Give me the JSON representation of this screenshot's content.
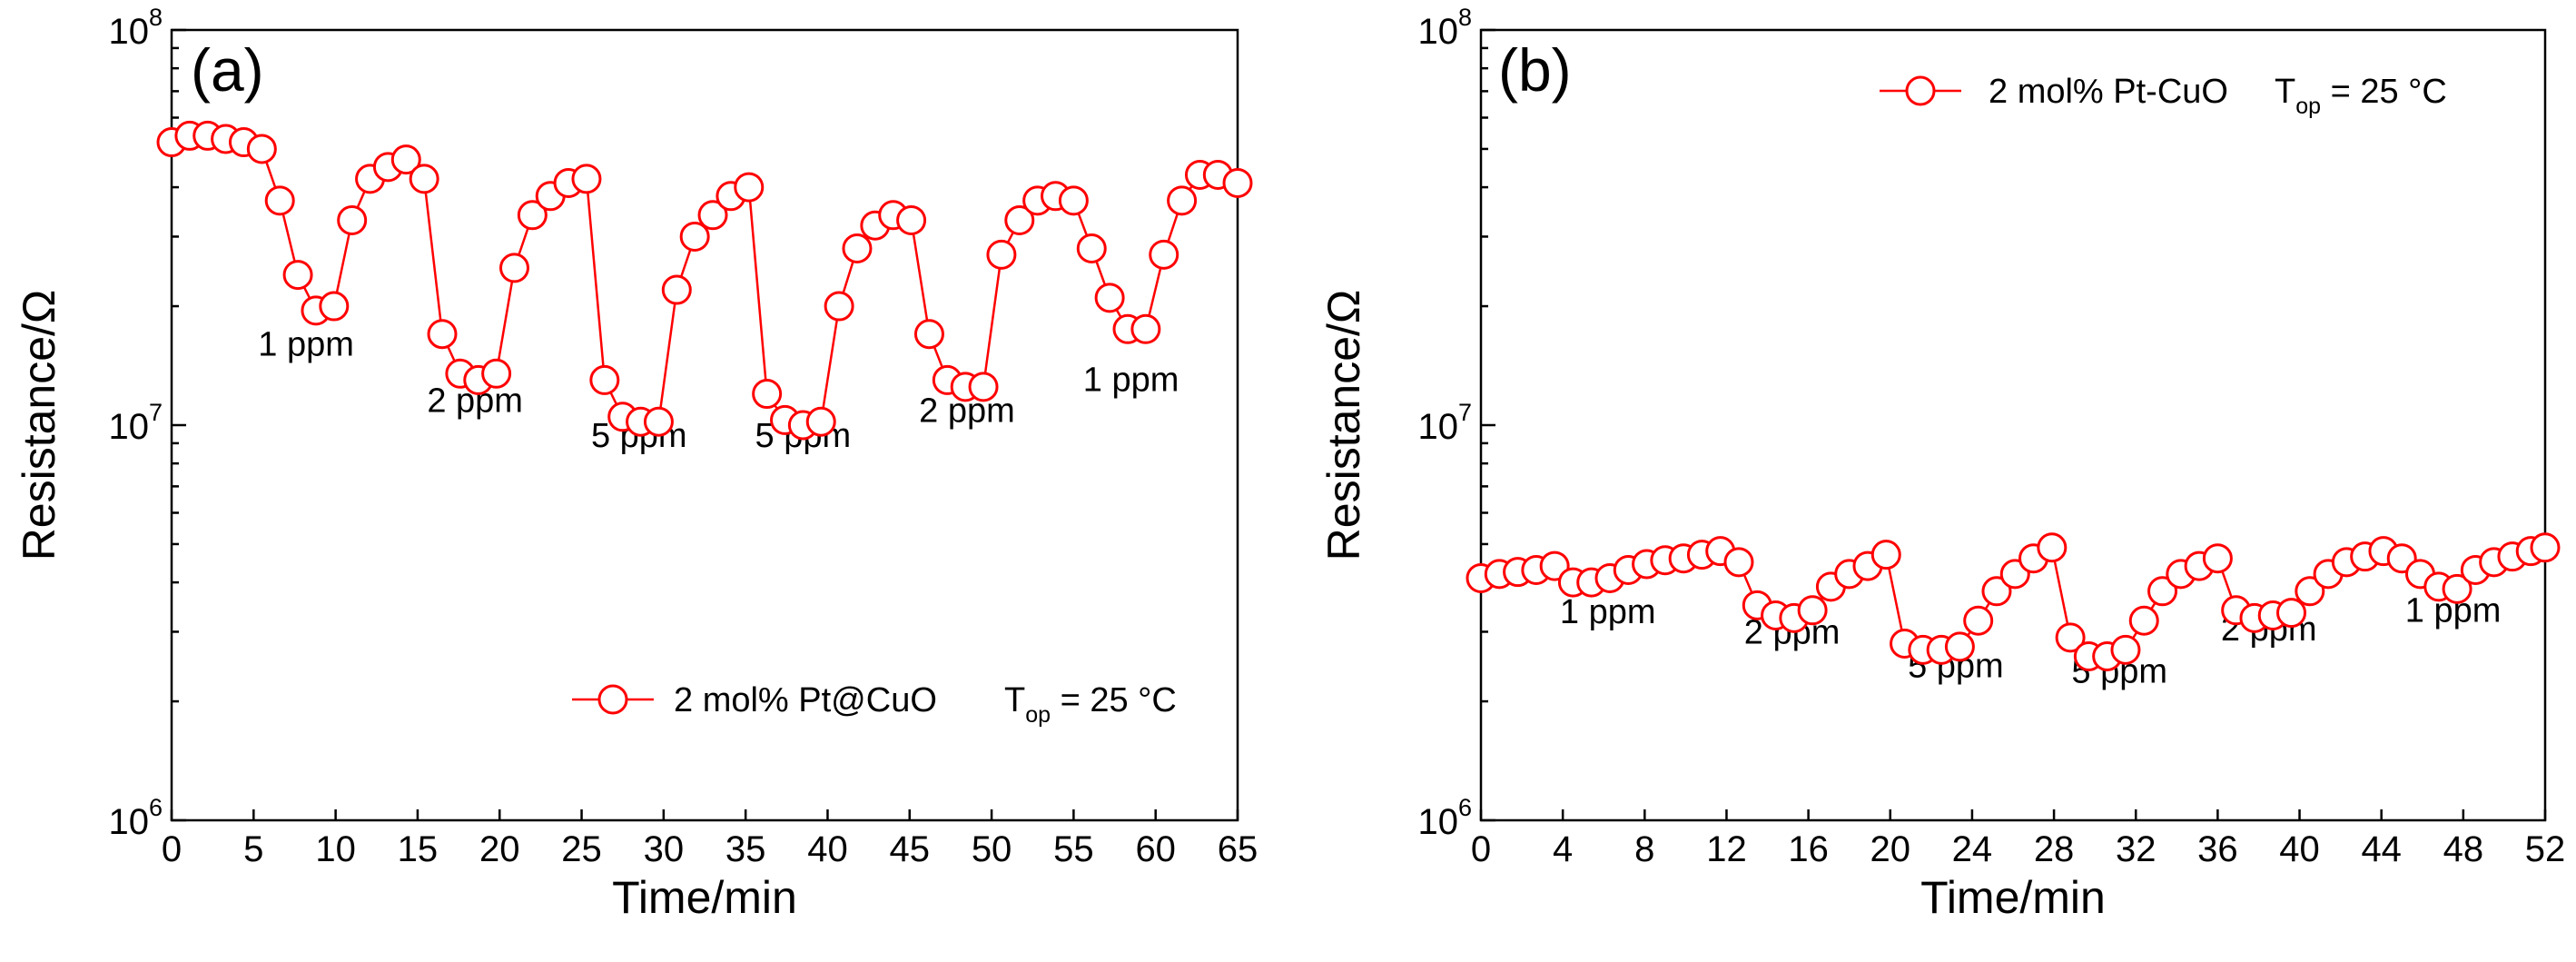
{
  "chart_data": [
    {
      "panel_label": "(a)",
      "type": "scatter",
      "title": "",
      "xlabel": "Time/min",
      "ylabel": "Resistance/Ω",
      "xlim": [
        0,
        65
      ],
      "ylim": [
        1000000,
        100000000
      ],
      "yscale": "log",
      "xticks": [
        0,
        5,
        10,
        15,
        20,
        25,
        30,
        35,
        40,
        45,
        50,
        55,
        60,
        65
      ],
      "yticks": [
        {
          "value": 1000000,
          "base": "10",
          "exp": "6"
        },
        {
          "value": 10000000,
          "base": "10",
          "exp": "7"
        },
        {
          "value": 100000000,
          "base": "10",
          "exp": "8"
        }
      ],
      "color": "#ff0000",
      "series": [
        {
          "name": "2 mol% Pt@CuO",
          "marker": "open-circle",
          "x": [
            0,
            1.1,
            2.2,
            3.3,
            4.4,
            5.5,
            6.6,
            7.7,
            8.8,
            9.9,
            11,
            12.1,
            13.2,
            14.3,
            15.4,
            16.5,
            17.6,
            18.7,
            19.8,
            20.9,
            22,
            23.1,
            24.2,
            25.3,
            26.4,
            27.5,
            28.6,
            29.7,
            30.8,
            31.9,
            33,
            34.1,
            35.2,
            36.3,
            37.4,
            38.5,
            39.6,
            40.7,
            41.8,
            42.9,
            44,
            45.1,
            46.2,
            47.3,
            48.4,
            49.5,
            50.6,
            51.7,
            52.8,
            53.9,
            55,
            56.1,
            57.2,
            58.3,
            59.4,
            60.5,
            61.6,
            62.7,
            63.8,
            65
          ],
          "y": [
            52000000,
            54000000,
            54000000,
            53000000,
            52000000,
            50000000,
            37000000,
            24000000,
            19500000,
            20000000,
            33000000,
            42000000,
            45000000,
            47000000,
            42000000,
            17000000,
            13500000,
            13000000,
            13500000,
            25000000,
            34000000,
            38000000,
            41000000,
            42000000,
            13000000,
            10500000,
            10200000,
            10200000,
            22000000,
            30000000,
            34000000,
            38000000,
            40000000,
            12000000,
            10300000,
            10000000,
            10200000,
            20000000,
            28000000,
            32000000,
            34000000,
            33000000,
            17000000,
            13000000,
            12500000,
            12500000,
            27000000,
            33000000,
            37000000,
            38000000,
            37000000,
            28000000,
            21000000,
            17500000,
            17500000,
            27000000,
            37000000,
            43000000,
            43000000,
            41000000
          ]
        }
      ],
      "annotations": [
        {
          "text": "1 ppm",
          "x": 8.2,
          "y": 15000000
        },
        {
          "text": "2 ppm",
          "x": 18.5,
          "y": 10800000
        },
        {
          "text": "5 ppm",
          "x": 28.5,
          "y": 8800000
        },
        {
          "text": "5 ppm",
          "x": 38.5,
          "y": 8800000
        },
        {
          "text": "2 ppm",
          "x": 48.5,
          "y": 10200000
        },
        {
          "text": "1 ppm",
          "x": 58.5,
          "y": 12200000
        }
      ],
      "legend": {
        "location": "lower-right",
        "label": "2 mol% Pt@CuO",
        "condition_main": "T",
        "condition_sub": "op",
        "condition_rest": " = 25 °C"
      }
    },
    {
      "panel_label": "(b)",
      "type": "scatter",
      "title": "",
      "xlabel": "Time/min",
      "ylabel": "Resistance/Ω",
      "xlim": [
        0,
        52
      ],
      "ylim": [
        1000000,
        100000000
      ],
      "yscale": "log",
      "xticks": [
        0,
        4,
        8,
        12,
        16,
        20,
        24,
        28,
        32,
        36,
        40,
        44,
        48,
        52
      ],
      "yticks": [
        {
          "value": 1000000,
          "base": "10",
          "exp": "6"
        },
        {
          "value": 10000000,
          "base": "10",
          "exp": "7"
        },
        {
          "value": 100000000,
          "base": "10",
          "exp": "8"
        }
      ],
      "color": "#ff0000",
      "series": [
        {
          "name": "2 mol% Pt-CuO",
          "marker": "open-circle",
          "x": [
            0,
            0.9,
            1.8,
            2.7,
            3.6,
            4.5,
            5.4,
            6.3,
            7.2,
            8.1,
            9,
            9.9,
            10.8,
            11.7,
            12.6,
            13.5,
            14.4,
            15.3,
            16.2,
            17.1,
            18,
            18.9,
            19.8,
            20.7,
            21.6,
            22.5,
            23.4,
            24.3,
            25.2,
            26.1,
            27,
            27.9,
            28.8,
            29.7,
            30.6,
            31.5,
            32.4,
            33.3,
            34.2,
            35.1,
            36,
            36.9,
            37.8,
            38.7,
            39.6,
            40.5,
            41.4,
            42.3,
            43.2,
            44.1,
            45,
            45.9,
            46.8,
            47.7,
            48.6,
            49.5,
            50.4,
            51.3,
            52
          ],
          "y": [
            4100000,
            4200000,
            4250000,
            4300000,
            4400000,
            4000000,
            4000000,
            4100000,
            4300000,
            4450000,
            4550000,
            4600000,
            4700000,
            4800000,
            4500000,
            3500000,
            3300000,
            3250000,
            3400000,
            3900000,
            4200000,
            4400000,
            4700000,
            2800000,
            2700000,
            2700000,
            2750000,
            3200000,
            3800000,
            4200000,
            4600000,
            4900000,
            2900000,
            2600000,
            2600000,
            2700000,
            3200000,
            3800000,
            4200000,
            4400000,
            4600000,
            3400000,
            3250000,
            3300000,
            3350000,
            3800000,
            4200000,
            4500000,
            4650000,
            4800000,
            4600000,
            4200000,
            3900000,
            3850000,
            4300000,
            4500000,
            4650000,
            4800000,
            4900000
          ]
        }
      ],
      "annotations": [
        {
          "text": "1 ppm",
          "x": 6.2,
          "y": 3150000
        },
        {
          "text": "2 ppm",
          "x": 15.2,
          "y": 2800000
        },
        {
          "text": "5 ppm",
          "x": 23.2,
          "y": 2300000
        },
        {
          "text": "5 ppm",
          "x": 31.2,
          "y": 2230000
        },
        {
          "text": "2 ppm",
          "x": 38.5,
          "y": 2850000
        },
        {
          "text": "1 ppm",
          "x": 47.5,
          "y": 3180000
        }
      ],
      "legend": {
        "location": "top-right",
        "label": "2 mol% Pt-CuO",
        "condition_main": "T",
        "condition_sub": "op",
        "condition_rest": " = 25 °C"
      }
    }
  ]
}
